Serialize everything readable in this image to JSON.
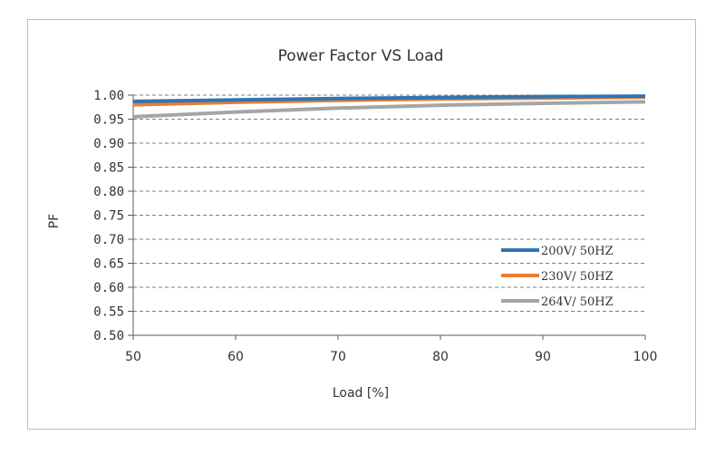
{
  "chart_data": {
    "type": "line",
    "title": "Power Factor VS Load",
    "xlabel": "Load [%]",
    "ylabel": "PF",
    "xlim": [
      50,
      100
    ],
    "ylim": [
      0.5,
      1.0
    ],
    "x_ticks": [
      "50",
      "60",
      "70",
      "80",
      "90",
      "100"
    ],
    "y_ticks": [
      "1.00",
      "0.95",
      "0.90",
      "0.85",
      "0.80",
      "0.75",
      "0.70",
      "0.65",
      "0.60",
      "0.55",
      "0.50"
    ],
    "grid": "horizontal-dashed",
    "legend_position": "right",
    "series": [
      {
        "name": "200V/ 50HZ",
        "color": "#2e75b6",
        "x": [
          50,
          60,
          70,
          80,
          90,
          100
        ],
        "y": [
          0.987,
          0.99,
          0.993,
          0.995,
          0.997,
          0.998
        ]
      },
      {
        "name": "230V/ 50HZ",
        "color": "#ed7d31",
        "x": [
          50,
          60,
          70,
          80,
          90,
          100
        ],
        "y": [
          0.98,
          0.985,
          0.989,
          0.992,
          0.994,
          0.996
        ]
      },
      {
        "name": "264V/ 50HZ",
        "color": "#a5a5a5",
        "x": [
          50,
          60,
          70,
          80,
          90,
          100
        ],
        "y": [
          0.955,
          0.965,
          0.973,
          0.979,
          0.983,
          0.986
        ]
      }
    ]
  }
}
